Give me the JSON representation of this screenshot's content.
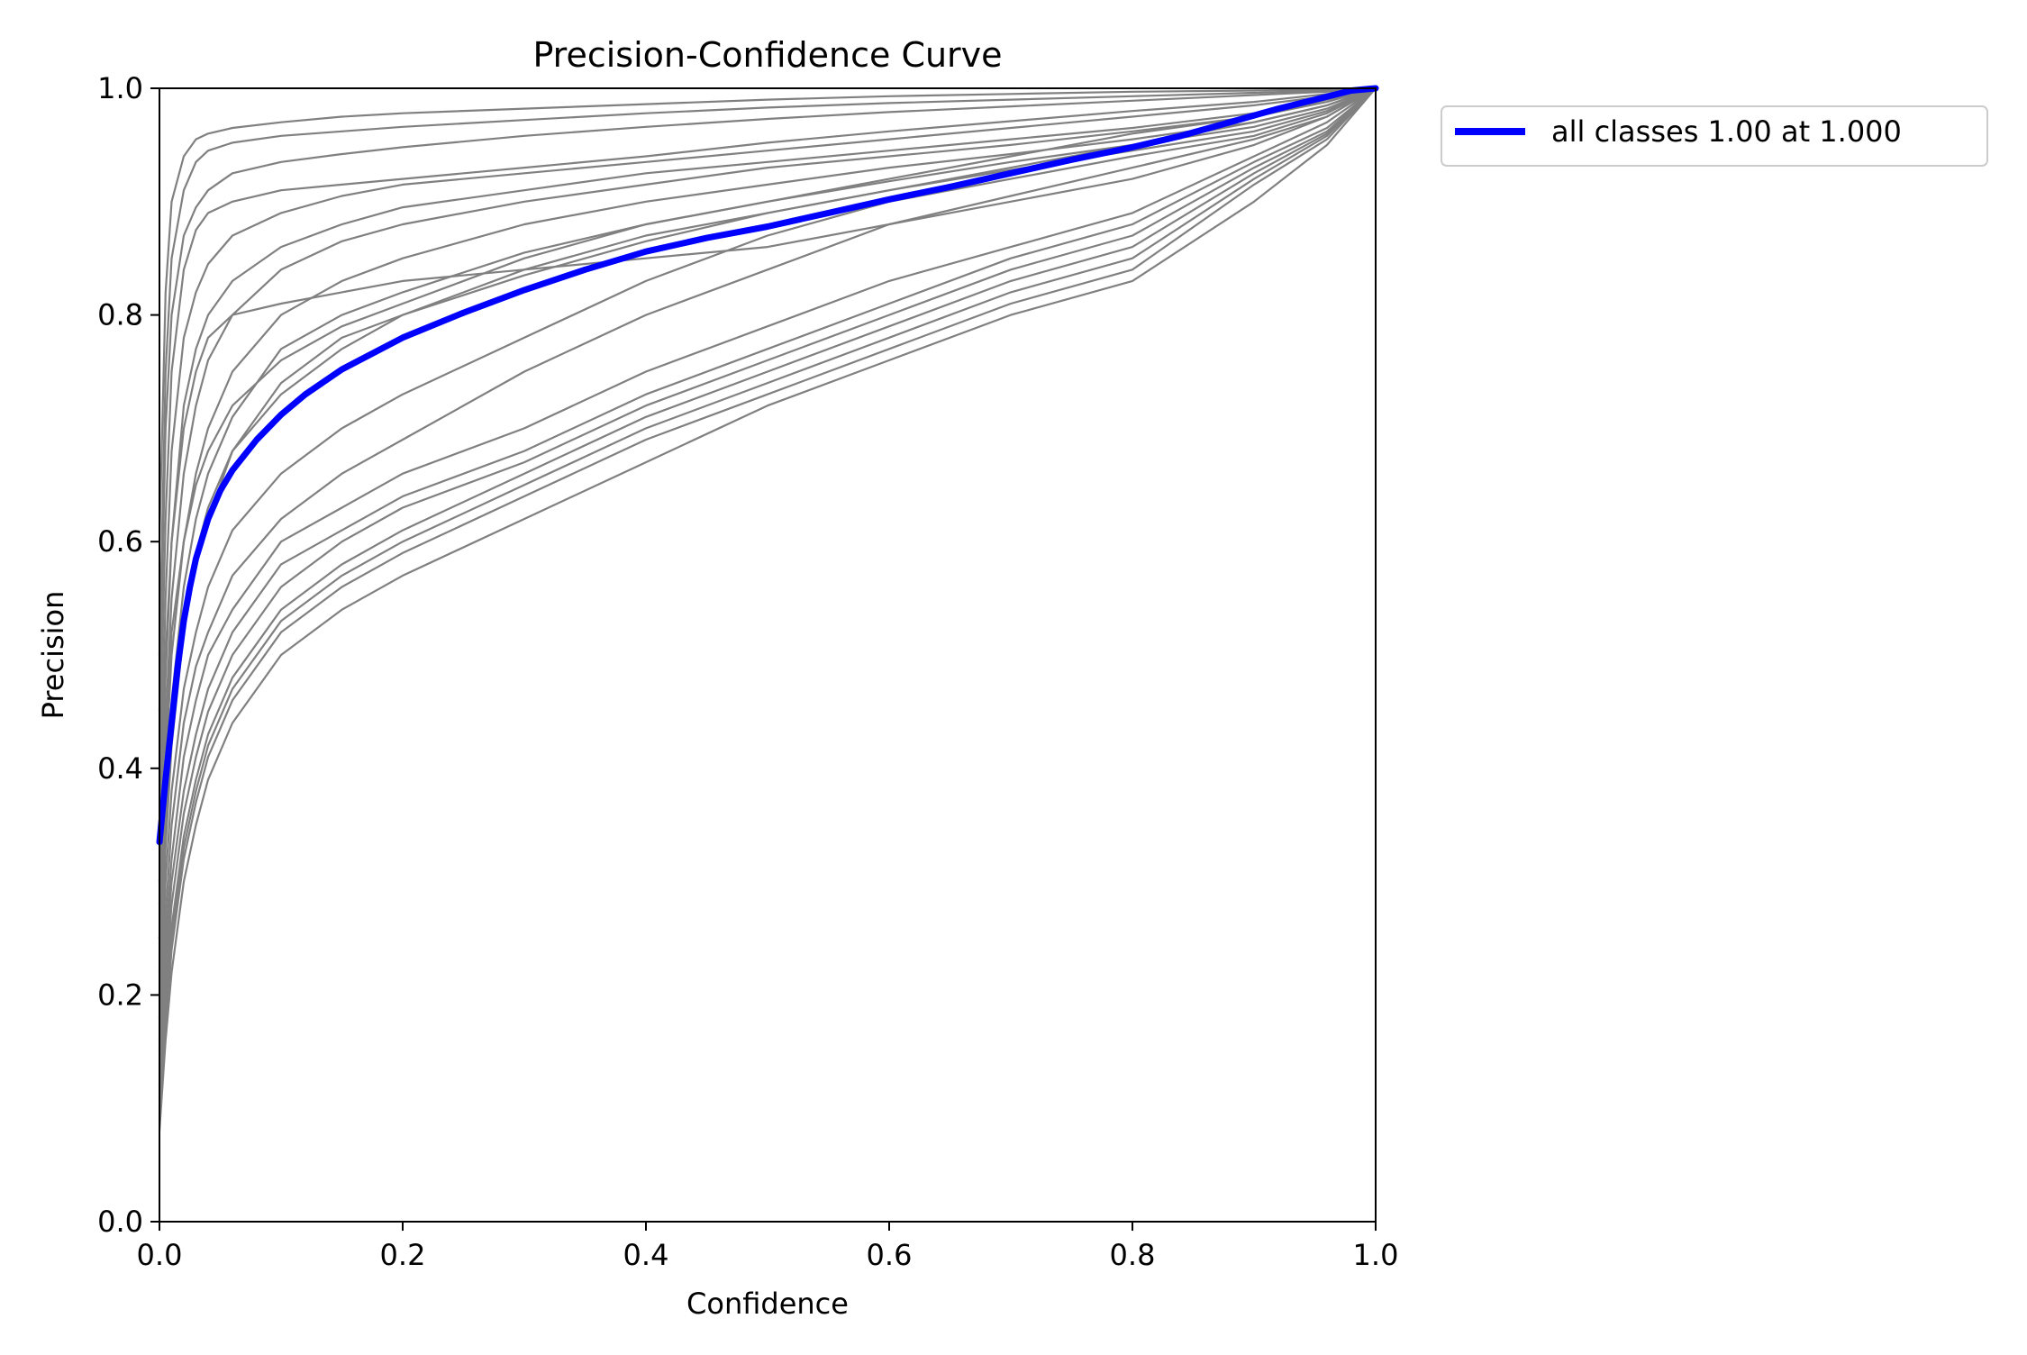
{
  "chart_data": {
    "type": "line",
    "title": "Precision-Confidence Curve",
    "xlabel": "Confidence",
    "ylabel": "Precision",
    "xlim": [
      0.0,
      1.0
    ],
    "ylim": [
      0.0,
      1.0
    ],
    "xticks": [
      0.0,
      0.2,
      0.4,
      0.6,
      0.8,
      1.0
    ],
    "yticks": [
      0.0,
      0.2,
      0.4,
      0.6,
      0.8,
      1.0
    ],
    "xtick_labels": [
      "0.0",
      "0.2",
      "0.4",
      "0.6",
      "0.8",
      "1.0"
    ],
    "ytick_labels": [
      "0.0",
      "0.2",
      "0.4",
      "0.6",
      "0.8",
      "1.0"
    ],
    "grid": false,
    "legend_position": "outside-top-right",
    "legend": [
      {
        "label": "all classes 1.00 at 1.000",
        "color": "#0000ff"
      }
    ],
    "colors": {
      "class_curve": "#808080",
      "all_classes": "#0000ff"
    },
    "all_classes": {
      "name": "all classes 1.00 at 1.000",
      "x": [
        0.0,
        0.005,
        0.01,
        0.015,
        0.02,
        0.025,
        0.03,
        0.04,
        0.05,
        0.06,
        0.08,
        0.1,
        0.12,
        0.15,
        0.2,
        0.25,
        0.3,
        0.35,
        0.4,
        0.45,
        0.5,
        0.55,
        0.6,
        0.65,
        0.7,
        0.75,
        0.8,
        0.84,
        0.88,
        0.92,
        0.95,
        0.98,
        1.0
      ],
      "y": [
        0.335,
        0.39,
        0.44,
        0.49,
        0.53,
        0.56,
        0.585,
        0.62,
        0.645,
        0.663,
        0.69,
        0.712,
        0.73,
        0.752,
        0.78,
        0.802,
        0.822,
        0.84,
        0.856,
        0.868,
        0.878,
        0.89,
        0.902,
        0.913,
        0.925,
        0.937,
        0.948,
        0.958,
        0.97,
        0.982,
        0.99,
        0.998,
        1.0
      ]
    },
    "class_series": [
      {
        "x": [
          0.0,
          0.005,
          0.01,
          0.02,
          0.03,
          0.04,
          0.06,
          0.1,
          0.15,
          0.2,
          0.3,
          0.4,
          0.5,
          0.6,
          0.7,
          0.8,
          0.9,
          0.96,
          1.0
        ],
        "y": [
          0.6,
          0.82,
          0.9,
          0.94,
          0.955,
          0.96,
          0.965,
          0.97,
          0.975,
          0.978,
          0.982,
          0.986,
          0.99,
          0.993,
          0.995,
          0.997,
          0.998,
          0.999,
          1.0
        ]
      },
      {
        "x": [
          0.0,
          0.005,
          0.01,
          0.02,
          0.03,
          0.04,
          0.06,
          0.1,
          0.15,
          0.2,
          0.3,
          0.4,
          0.5,
          0.6,
          0.7,
          0.8,
          0.9,
          0.96,
          1.0
        ],
        "y": [
          0.5,
          0.75,
          0.85,
          0.91,
          0.935,
          0.945,
          0.952,
          0.958,
          0.962,
          0.966,
          0.972,
          0.978,
          0.983,
          0.987,
          0.99,
          0.993,
          0.996,
          0.998,
          1.0
        ]
      },
      {
        "x": [
          0.0,
          0.005,
          0.01,
          0.02,
          0.03,
          0.04,
          0.06,
          0.1,
          0.15,
          0.2,
          0.3,
          0.4,
          0.5,
          0.6,
          0.7,
          0.8,
          0.9,
          0.96,
          1.0
        ],
        "y": [
          0.45,
          0.7,
          0.8,
          0.87,
          0.895,
          0.91,
          0.925,
          0.935,
          0.942,
          0.948,
          0.958,
          0.966,
          0.973,
          0.979,
          0.984,
          0.989,
          0.994,
          0.997,
          1.0
        ]
      },
      {
        "x": [
          0.0,
          0.005,
          0.01,
          0.02,
          0.03,
          0.04,
          0.06,
          0.1,
          0.15,
          0.2,
          0.3,
          0.4,
          0.5,
          0.6,
          0.7,
          0.8,
          0.9,
          0.96,
          1.0
        ],
        "y": [
          0.4,
          0.62,
          0.75,
          0.84,
          0.875,
          0.89,
          0.9,
          0.91,
          0.915,
          0.92,
          0.93,
          0.94,
          0.952,
          0.962,
          0.971,
          0.98,
          0.988,
          0.995,
          1.0
        ]
      },
      {
        "x": [
          0.0,
          0.005,
          0.01,
          0.02,
          0.03,
          0.04,
          0.06,
          0.1,
          0.15,
          0.2,
          0.3,
          0.4,
          0.5,
          0.6,
          0.7,
          0.8,
          0.9,
          0.96,
          1.0
        ],
        "y": [
          0.35,
          0.55,
          0.68,
          0.78,
          0.82,
          0.845,
          0.87,
          0.89,
          0.905,
          0.915,
          0.925,
          0.935,
          0.945,
          0.955,
          0.965,
          0.975,
          0.985,
          0.993,
          1.0
        ]
      },
      {
        "x": [
          0.0,
          0.005,
          0.01,
          0.02,
          0.03,
          0.04,
          0.06,
          0.1,
          0.15,
          0.2,
          0.3,
          0.4,
          0.5,
          0.6,
          0.7,
          0.8,
          0.9,
          0.96,
          1.0
        ],
        "y": [
          0.3,
          0.48,
          0.6,
          0.72,
          0.77,
          0.8,
          0.83,
          0.86,
          0.88,
          0.895,
          0.91,
          0.925,
          0.935,
          0.945,
          0.955,
          0.965,
          0.978,
          0.99,
          1.0
        ]
      },
      {
        "x": [
          0.0,
          0.005,
          0.01,
          0.02,
          0.03,
          0.04,
          0.06,
          0.1,
          0.15,
          0.2,
          0.3,
          0.4,
          0.5,
          0.6,
          0.7,
          0.8,
          0.9,
          0.96,
          1.0
        ],
        "y": [
          0.28,
          0.44,
          0.55,
          0.66,
          0.72,
          0.76,
          0.8,
          0.84,
          0.865,
          0.88,
          0.9,
          0.915,
          0.93,
          0.94,
          0.95,
          0.962,
          0.975,
          0.988,
          1.0
        ]
      },
      {
        "x": [
          0.0,
          0.005,
          0.01,
          0.02,
          0.03,
          0.04,
          0.06,
          0.1,
          0.15,
          0.2,
          0.3,
          0.4,
          0.5,
          0.6,
          0.7,
          0.8,
          0.9,
          0.96,
          1.0
        ],
        "y": [
          0.25,
          0.4,
          0.5,
          0.6,
          0.66,
          0.7,
          0.75,
          0.8,
          0.83,
          0.85,
          0.88,
          0.9,
          0.915,
          0.93,
          0.942,
          0.955,
          0.97,
          0.985,
          1.0
        ]
      },
      {
        "x": [
          0.0,
          0.005,
          0.01,
          0.02,
          0.03,
          0.04,
          0.06,
          0.1,
          0.15,
          0.2,
          0.3,
          0.4,
          0.5,
          0.6,
          0.7,
          0.8,
          0.9,
          0.96,
          1.0
        ],
        "y": [
          0.22,
          0.36,
          0.46,
          0.56,
          0.62,
          0.66,
          0.71,
          0.77,
          0.8,
          0.82,
          0.855,
          0.88,
          0.9,
          0.918,
          0.935,
          0.95,
          0.966,
          0.982,
          1.0
        ]
      },
      {
        "x": [
          0.0,
          0.005,
          0.01,
          0.02,
          0.03,
          0.04,
          0.06,
          0.1,
          0.15,
          0.2,
          0.3,
          0.4,
          0.5,
          0.6,
          0.7,
          0.8,
          0.9,
          0.96,
          1.0
        ],
        "y": [
          0.2,
          0.33,
          0.42,
          0.52,
          0.58,
          0.62,
          0.68,
          0.74,
          0.78,
          0.8,
          0.84,
          0.87,
          0.89,
          0.91,
          0.928,
          0.945,
          0.962,
          0.98,
          1.0
        ]
      },
      {
        "x": [
          0.0,
          0.005,
          0.01,
          0.02,
          0.03,
          0.04,
          0.06,
          0.1,
          0.15,
          0.2,
          0.3,
          0.4,
          0.5,
          0.6,
          0.7,
          0.8,
          0.9,
          0.96,
          1.0
        ],
        "y": [
          0.18,
          0.3,
          0.38,
          0.47,
          0.52,
          0.56,
          0.61,
          0.66,
          0.7,
          0.73,
          0.78,
          0.83,
          0.87,
          0.9,
          0.92,
          0.94,
          0.958,
          0.978,
          1.0
        ]
      },
      {
        "x": [
          0.0,
          0.005,
          0.01,
          0.02,
          0.03,
          0.04,
          0.06,
          0.1,
          0.15,
          0.2,
          0.3,
          0.4,
          0.5,
          0.6,
          0.7,
          0.8,
          0.9,
          0.96,
          1.0
        ],
        "y": [
          0.16,
          0.27,
          0.35,
          0.44,
          0.49,
          0.52,
          0.57,
          0.62,
          0.66,
          0.69,
          0.75,
          0.8,
          0.84,
          0.88,
          0.905,
          0.93,
          0.955,
          0.975,
          1.0
        ]
      },
      {
        "x": [
          0.0,
          0.005,
          0.01,
          0.02,
          0.03,
          0.04,
          0.06,
          0.1,
          0.15,
          0.2,
          0.3,
          0.4,
          0.5,
          0.6,
          0.7,
          0.8,
          0.9,
          0.96,
          1.0
        ],
        "y": [
          0.15,
          0.25,
          0.32,
          0.41,
          0.46,
          0.5,
          0.54,
          0.6,
          0.63,
          0.66,
          0.7,
          0.75,
          0.79,
          0.83,
          0.86,
          0.89,
          0.94,
          0.97,
          1.0
        ]
      },
      {
        "x": [
          0.0,
          0.005,
          0.01,
          0.02,
          0.03,
          0.04,
          0.06,
          0.1,
          0.15,
          0.2,
          0.3,
          0.4,
          0.5,
          0.6,
          0.7,
          0.8,
          0.9,
          0.96,
          1.0
        ],
        "y": [
          0.13,
          0.23,
          0.3,
          0.38,
          0.43,
          0.47,
          0.52,
          0.58,
          0.61,
          0.64,
          0.68,
          0.73,
          0.77,
          0.81,
          0.85,
          0.88,
          0.935,
          0.965,
          1.0
        ]
      },
      {
        "x": [
          0.0,
          0.005,
          0.01,
          0.02,
          0.03,
          0.04,
          0.06,
          0.1,
          0.15,
          0.2,
          0.3,
          0.4,
          0.5,
          0.6,
          0.7,
          0.8,
          0.9,
          0.96,
          1.0
        ],
        "y": [
          0.12,
          0.21,
          0.28,
          0.36,
          0.41,
          0.45,
          0.5,
          0.56,
          0.6,
          0.63,
          0.67,
          0.72,
          0.76,
          0.8,
          0.84,
          0.87,
          0.93,
          0.962,
          1.0
        ]
      },
      {
        "x": [
          0.0,
          0.005,
          0.01,
          0.02,
          0.03,
          0.04,
          0.06,
          0.1,
          0.15,
          0.2,
          0.3,
          0.4,
          0.5,
          0.6,
          0.7,
          0.8,
          0.9,
          0.96,
          1.0
        ],
        "y": [
          0.11,
          0.2,
          0.26,
          0.34,
          0.39,
          0.43,
          0.48,
          0.54,
          0.58,
          0.61,
          0.66,
          0.71,
          0.75,
          0.79,
          0.83,
          0.86,
          0.925,
          0.96,
          1.0
        ]
      },
      {
        "x": [
          0.0,
          0.005,
          0.01,
          0.02,
          0.03,
          0.04,
          0.06,
          0.1,
          0.15,
          0.2,
          0.3,
          0.4,
          0.5,
          0.6,
          0.7,
          0.8,
          0.9,
          0.96,
          1.0
        ],
        "y": [
          0.1,
          0.18,
          0.25,
          0.33,
          0.38,
          0.42,
          0.47,
          0.53,
          0.57,
          0.6,
          0.65,
          0.7,
          0.74,
          0.78,
          0.82,
          0.85,
          0.92,
          0.958,
          1.0
        ]
      },
      {
        "x": [
          0.0,
          0.005,
          0.01,
          0.02,
          0.03,
          0.04,
          0.06,
          0.1,
          0.15,
          0.2,
          0.3,
          0.4,
          0.5,
          0.6,
          0.7,
          0.8,
          0.9,
          0.96,
          1.0
        ],
        "y": [
          0.09,
          0.17,
          0.24,
          0.32,
          0.37,
          0.41,
          0.46,
          0.52,
          0.56,
          0.59,
          0.64,
          0.69,
          0.73,
          0.77,
          0.81,
          0.84,
          0.915,
          0.955,
          1.0
        ]
      },
      {
        "x": [
          0.0,
          0.005,
          0.01,
          0.02,
          0.03,
          0.04,
          0.06,
          0.1,
          0.15,
          0.2,
          0.3,
          0.4,
          0.5,
          0.6,
          0.7,
          0.8,
          0.9,
          0.96,
          1.0
        ],
        "y": [
          0.3,
          0.5,
          0.6,
          0.7,
          0.75,
          0.78,
          0.8,
          0.81,
          0.82,
          0.83,
          0.84,
          0.85,
          0.86,
          0.88,
          0.9,
          0.92,
          0.95,
          0.975,
          1.0
        ]
      },
      {
        "x": [
          0.0,
          0.005,
          0.01,
          0.02,
          0.03,
          0.04,
          0.06,
          0.1,
          0.15,
          0.2,
          0.3,
          0.4,
          0.5,
          0.6,
          0.7,
          0.8,
          0.9,
          0.96,
          1.0
        ],
        "y": [
          0.25,
          0.42,
          0.52,
          0.6,
          0.65,
          0.68,
          0.72,
          0.76,
          0.79,
          0.81,
          0.85,
          0.88,
          0.9,
          0.92,
          0.94,
          0.96,
          0.975,
          0.99,
          1.0
        ]
      },
      {
        "x": [
          0.0,
          0.005,
          0.01,
          0.02,
          0.03,
          0.04,
          0.06,
          0.1,
          0.15,
          0.2,
          0.3,
          0.4,
          0.5,
          0.6,
          0.7,
          0.8,
          0.9,
          0.96,
          1.0
        ],
        "y": [
          0.2,
          0.35,
          0.45,
          0.54,
          0.59,
          0.63,
          0.68,
          0.73,
          0.77,
          0.8,
          0.835,
          0.865,
          0.89,
          0.91,
          0.93,
          0.95,
          0.97,
          0.985,
          1.0
        ]
      },
      {
        "x": [
          0.0,
          0.005,
          0.01,
          0.02,
          0.03,
          0.04,
          0.06,
          0.1,
          0.15,
          0.2,
          0.3,
          0.4,
          0.5,
          0.6,
          0.7,
          0.8,
          0.9,
          0.96,
          1.0
        ],
        "y": [
          0.08,
          0.16,
          0.22,
          0.3,
          0.35,
          0.39,
          0.44,
          0.5,
          0.54,
          0.57,
          0.62,
          0.67,
          0.72,
          0.76,
          0.8,
          0.83,
          0.9,
          0.95,
          1.0
        ]
      }
    ]
  }
}
